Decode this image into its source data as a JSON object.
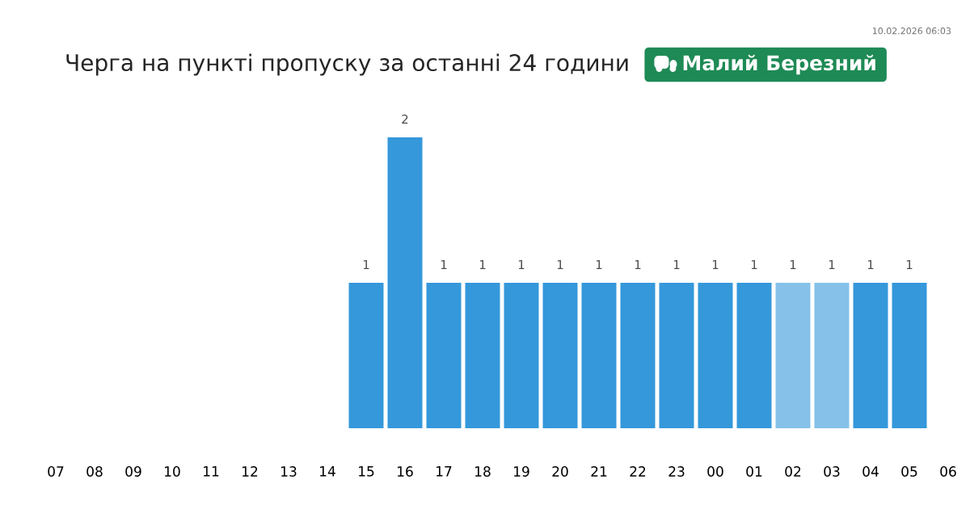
{
  "chart_data": {
    "type": "bar",
    "title": "Черга на пункті пропуску за останні 24 години",
    "subtitle": "Малий Березний",
    "annotations": [
      "10.02.2026 06:03"
    ],
    "categories": [
      "07",
      "08",
      "09",
      "10",
      "11",
      "12",
      "13",
      "14",
      "15",
      "16",
      "17",
      "18",
      "19",
      "20",
      "21",
      "22",
      "23",
      "00",
      "01",
      "02",
      "03",
      "04",
      "05",
      "06"
    ],
    "values": [
      null,
      null,
      null,
      null,
      null,
      null,
      null,
      null,
      1,
      2,
      1,
      1,
      1,
      1,
      1,
      1,
      1,
      1,
      1,
      1,
      1,
      1,
      1,
      null
    ],
    "colors": [
      null,
      null,
      null,
      null,
      null,
      null,
      null,
      null,
      "#3498db",
      "#3498db",
      "#3498db",
      "#3498db",
      "#3498db",
      "#3498db",
      "#3498db",
      "#3498db",
      "#3498db",
      "#3498db",
      "#3498db",
      "#85c1e9",
      "#85c1e9",
      "#3498db",
      "#3498db",
      null
    ],
    "ylim": [
      0,
      2
    ],
    "tick_labels": "x",
    "data_labels": true
  }
}
